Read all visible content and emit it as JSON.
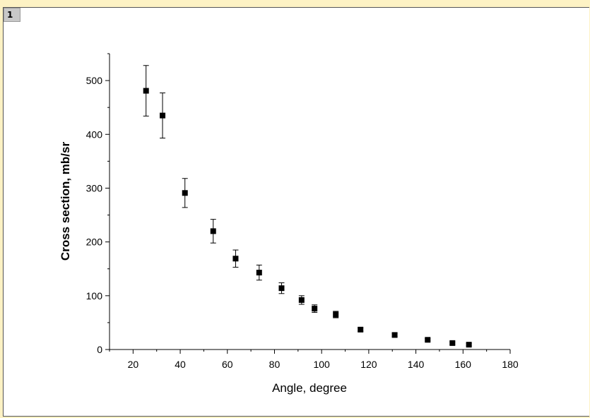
{
  "layer": {
    "label": "1"
  },
  "chart_data": {
    "type": "scatter",
    "title": "",
    "xlabel": "Angle, degree",
    "ylabel": "Cross section, mb/sr",
    "xlim": [
      10,
      180
    ],
    "ylim": [
      0,
      550
    ],
    "xticks": [
      20,
      40,
      60,
      80,
      100,
      120,
      140,
      160,
      180
    ],
    "yticks": [
      0,
      100,
      200,
      300,
      400,
      500
    ],
    "grid": false,
    "marker": "square",
    "marker_color": "#000000",
    "series": [
      {
        "x": [
          25.5,
          32.5,
          42,
          54,
          63.5,
          73.5,
          83,
          91.5,
          97,
          106,
          116.5,
          131,
          145,
          155.5,
          162.5
        ],
        "y": [
          481,
          435,
          291,
          220,
          169,
          143,
          114,
          92,
          76,
          65,
          37,
          27,
          18,
          12,
          9
        ],
        "err": [
          47,
          42,
          27,
          22,
          16,
          14,
          10,
          8,
          7,
          6,
          3,
          3,
          2,
          2,
          2
        ]
      }
    ]
  }
}
